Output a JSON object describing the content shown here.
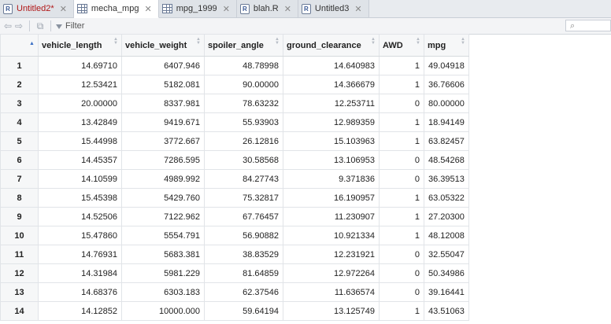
{
  "tabs": [
    {
      "label": "Untitled2*",
      "icon": "r-script-icon",
      "active": false,
      "modified": true
    },
    {
      "label": "mecha_mpg",
      "icon": "data-grid-icon",
      "active": true,
      "modified": false
    },
    {
      "label": "mpg_1999",
      "icon": "data-grid-icon",
      "active": false,
      "modified": false
    },
    {
      "label": "blah.R",
      "icon": "r-script-icon",
      "active": false,
      "modified": false
    },
    {
      "label": "Untitled3",
      "icon": "r-script-icon",
      "active": false,
      "modified": false
    }
  ],
  "toolbar": {
    "filter_label": "Filter",
    "search_placeholder": ""
  },
  "table": {
    "columns": [
      "vehicle_length",
      "vehicle_weight",
      "spoiler_angle",
      "ground_clearance",
      "AWD",
      "mpg"
    ],
    "rows": [
      [
        "1",
        "14.69710",
        "6407.946",
        "48.78998",
        "14.640983",
        "1",
        "49.04918"
      ],
      [
        "2",
        "12.53421",
        "5182.081",
        "90.00000",
        "14.366679",
        "1",
        "36.76606"
      ],
      [
        "3",
        "20.00000",
        "8337.981",
        "78.63232",
        "12.253711",
        "0",
        "80.00000"
      ],
      [
        "4",
        "13.42849",
        "9419.671",
        "55.93903",
        "12.989359",
        "1",
        "18.94149"
      ],
      [
        "5",
        "15.44998",
        "3772.667",
        "26.12816",
        "15.103963",
        "1",
        "63.82457"
      ],
      [
        "6",
        "14.45357",
        "7286.595",
        "30.58568",
        "13.106953",
        "0",
        "48.54268"
      ],
      [
        "7",
        "14.10599",
        "4989.992",
        "84.27743",
        "9.371836",
        "0",
        "36.39513"
      ],
      [
        "8",
        "15.45398",
        "5429.760",
        "75.32817",
        "16.190957",
        "1",
        "63.05322"
      ],
      [
        "9",
        "14.52506",
        "7122.962",
        "67.76457",
        "11.230907",
        "1",
        "27.20300"
      ],
      [
        "10",
        "15.47860",
        "5554.791",
        "56.90882",
        "10.921334",
        "1",
        "48.12008"
      ],
      [
        "11",
        "14.76931",
        "5683.381",
        "38.83529",
        "12.231921",
        "0",
        "32.55047"
      ],
      [
        "12",
        "14.31984",
        "5981.229",
        "81.64859",
        "12.972264",
        "0",
        "50.34986"
      ],
      [
        "13",
        "14.68376",
        "6303.183",
        "62.37546",
        "11.636574",
        "0",
        "39.16441"
      ],
      [
        "14",
        "14.12852",
        "10000.000",
        "59.64194",
        "13.125749",
        "1",
        "43.51063"
      ]
    ]
  }
}
